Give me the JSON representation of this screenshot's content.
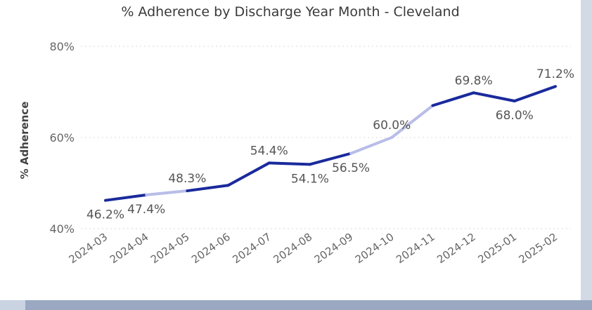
{
  "chart_data": {
    "type": "line",
    "title": "% Adherence by Discharge Year Month - Cleveland",
    "xlabel": "",
    "ylabel": "% Adherence",
    "categories": [
      "2024-03",
      "2024-04",
      "2024-05",
      "2024-06",
      "2024-07",
      "2024-08",
      "2024-09",
      "2024-10",
      "2024-11",
      "2024-12",
      "2025-01",
      "2025-02"
    ],
    "series": [
      {
        "values": [
          46.2,
          47.4,
          48.3,
          49.5,
          54.4,
          54.1,
          56.5,
          60.0,
          67.0,
          69.8,
          68.0,
          71.2
        ],
        "data_labels": [
          "46.2%",
          "47.4%",
          "48.3%",
          "",
          "54.4%",
          "54.1%",
          "56.5%",
          "60.0%",
          "",
          "69.8%",
          "68.0%",
          "71.2%"
        ]
      }
    ],
    "ylim": [
      40,
      80
    ],
    "yticks": [
      40,
      60,
      80
    ],
    "ytick_labels": [
      "40%",
      "60%",
      "80%"
    ],
    "grid": true,
    "colors": {
      "line": "#1a2a9c",
      "highlight": "#b8bde8",
      "grid": "#d9d9d9"
    }
  }
}
